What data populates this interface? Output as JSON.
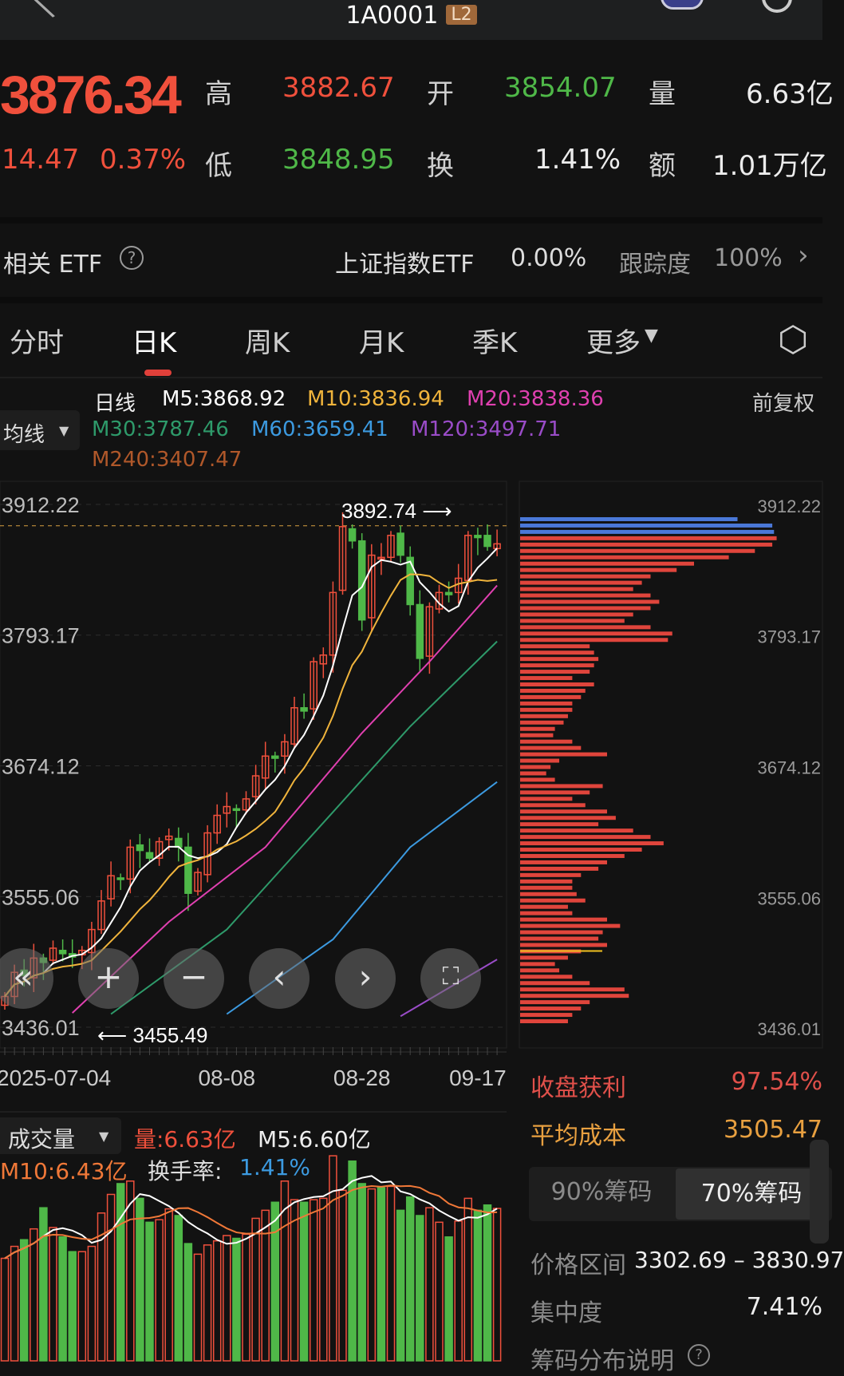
{
  "header": {
    "title": "1A0001",
    "badge": "L2"
  },
  "quote": {
    "price": "3876.34",
    "change": "14.47",
    "change_pct": "0.37%",
    "high_label": "高",
    "high": "3882.67",
    "open_label": "开",
    "open": "3854.07",
    "volume_label": "量",
    "volume": "6.63亿",
    "low_label": "低",
    "low": "3848.95",
    "turnover_label": "换",
    "turnover": "1.41%",
    "amount_label": "额",
    "amount": "1.01万亿"
  },
  "etf": {
    "label": "相关 ETF",
    "name": "上证指数ETF",
    "pct": "0.00%",
    "track_label": "跟踪度",
    "track": "100%"
  },
  "tabs": [
    {
      "label": "分时"
    },
    {
      "label": "日K",
      "active": true
    },
    {
      "label": "周K"
    },
    {
      "label": "月K"
    },
    {
      "label": "季K"
    },
    {
      "label": "更多"
    }
  ],
  "ma_legend": {
    "period": "日线",
    "m5": "M5:3868.92",
    "m10": "M10:3836.94",
    "m20": "M20:3838.36",
    "m30": "M30:3787.46",
    "m60": "M60:3659.41",
    "m120": "M120:3497.71",
    "m240": "M240:3407.47",
    "adjust": "前复权",
    "selector": "均线"
  },
  "colors": {
    "up": "#f0503c",
    "down": "#4fb848",
    "m5": "#ffffff",
    "m10": "#f0b43c",
    "m20": "#e040b0",
    "m30": "#2e9a6a",
    "m60": "#3c9ae0",
    "m120": "#9a4cc8",
    "m240": "#b0582a",
    "vol_m10": "#f07838",
    "chip": "#e0453c",
    "chip_recent": "#4a78d8",
    "avg_cost": "#f0c020"
  },
  "chart_data": {
    "type": "candlestick",
    "price_ticks": [
      "3912.22",
      "3793.17",
      "3674.12",
      "3555.06",
      "3436.01"
    ],
    "ylim": [
      3436.01,
      3912.22
    ],
    "date_ticks": [
      {
        "label": "2025-07-04",
        "index": 0
      },
      {
        "label": "08-08",
        "index": 23
      },
      {
        "label": "08-28",
        "index": 37
      },
      {
        "label": "09-17",
        "index": 49
      }
    ],
    "max_label": "3892.74",
    "min_label": "3455.49",
    "closes": [
      3464,
      3486,
      3483,
      3499,
      3495,
      3508,
      3503,
      3500,
      3506,
      3525,
      3551,
      3574,
      3571,
      3600,
      3597,
      3590,
      3605,
      3610,
      3600,
      3558,
      3577,
      3613,
      3629,
      3637,
      3634,
      3644,
      3665,
      3683,
      3681,
      3696,
      3727,
      3724,
      3769,
      3775,
      3832,
      3892,
      3879,
      3807,
      3866,
      3864,
      3884,
      3866,
      3821,
      3772,
      3819,
      3832,
      3830,
      3845,
      3884,
      3882,
      3874,
      3876.34
    ],
    "ma20": [
      [
        7,
        3449
      ],
      [
        17,
        3532
      ],
      [
        27,
        3600
      ],
      [
        37,
        3704
      ],
      [
        44,
        3769
      ],
      [
        51,
        3838.36
      ]
    ],
    "ma30": [
      [
        11,
        3448
      ],
      [
        23,
        3525
      ],
      [
        34,
        3632
      ],
      [
        42,
        3710
      ],
      [
        51,
        3787.46
      ]
    ],
    "ma60": [
      [
        23,
        3448
      ],
      [
        34,
        3516
      ],
      [
        42,
        3600
      ],
      [
        51,
        3659.41
      ]
    ],
    "ma120": [
      [
        41,
        3446
      ],
      [
        51,
        3497.71
      ]
    ],
    "volumes": [
      4.46,
      4.98,
      5.27,
      5.74,
      6.66,
      5.8,
      5.39,
      4.75,
      4.75,
      4.98,
      6.43,
      7.24,
      7.71,
      7.82,
      7.07,
      6.03,
      6.14,
      6.61,
      6.32,
      5.1,
      4.64,
      5.04,
      5.22,
      5.45,
      5.33,
      5.51,
      6.2,
      6.55,
      6.9,
      7.82,
      7.01,
      6.9,
      7.01,
      7.07,
      8.92,
      7.42,
      8.69,
      7.71,
      7.48,
      7.53,
      7.59,
      6.55,
      7.13,
      6.32,
      6.66,
      6.03,
      5.39,
      6.08,
      7.07,
      6.55,
      6.78,
      6.63
    ],
    "chip_distribution": [
      250,
      290,
      292,
      295,
      290,
      270,
      240,
      200,
      180,
      150,
      140,
      130,
      150,
      160,
      150,
      130,
      120,
      150,
      175,
      170,
      80,
      85,
      90,
      85,
      80,
      60,
      85,
      75,
      70,
      60,
      60,
      55,
      50,
      40,
      38,
      60,
      70,
      100,
      45,
      35,
      30,
      40,
      95,
      80,
      60,
      75,
      100,
      110,
      90,
      130,
      150,
      165,
      140,
      120,
      100,
      90,
      70,
      60,
      60,
      65,
      75,
      55,
      60,
      100,
      115,
      95,
      90,
      100,
      70,
      55,
      40,
      45,
      60,
      80,
      120,
      125,
      80,
      70,
      60,
      55
    ]
  },
  "volume_panel": {
    "selector": "成交量",
    "vol": "量:6.63亿",
    "m5": "M5:6.60亿",
    "m10": "M10:6.43亿",
    "turnover_label": "换手率:",
    "turnover": "1.41%"
  },
  "chips": {
    "profit_label": "收盘获利",
    "profit": "97.54%",
    "avg_label": "平均成本",
    "avg": "3505.47",
    "seg": [
      "90%筹码",
      "70%筹码"
    ],
    "range_label": "价格区间",
    "range": "3302.69 – 3830.97",
    "conc_label": "集中度",
    "conc": "7.41%",
    "help": "筹码分布说明"
  }
}
